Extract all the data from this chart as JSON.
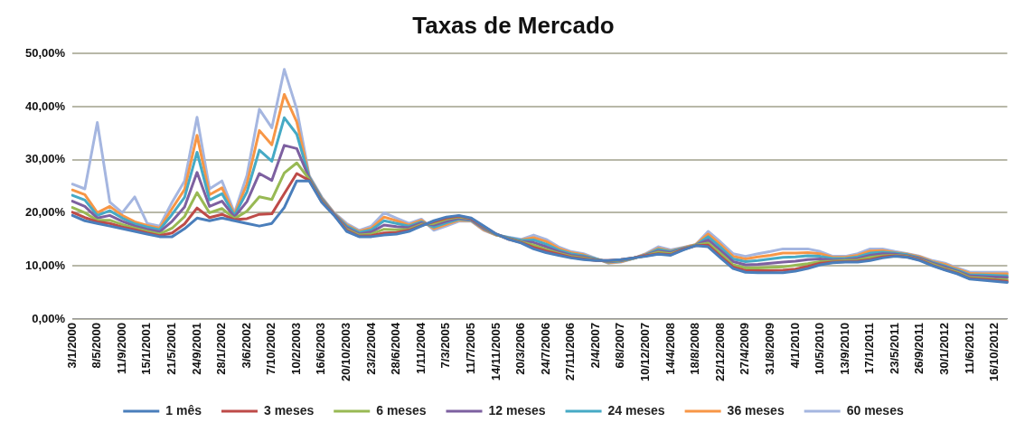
{
  "chart_data": {
    "type": "line",
    "title": "Taxas de Mercado",
    "categories": [
      "3/1/2000",
      null,
      "8/5/2000",
      null,
      "11/9/2000",
      null,
      "15/1/2001",
      null,
      "21/5/2001",
      null,
      "24/9/2001",
      null,
      "28/1/2002",
      null,
      "3/6/2002",
      null,
      "7/10/2002",
      null,
      "10/2/2003",
      null,
      "16/6/2003",
      null,
      "20/10/2003",
      null,
      "23/2/2004",
      null,
      "28/6/2004",
      null,
      "1/11/2004",
      null,
      "7/3/2005",
      null,
      "11/7/2005",
      null,
      "14/11/2005",
      null,
      "20/3/2006",
      null,
      "24/7/2006",
      null,
      "27/11/2006",
      null,
      "2/4/2007",
      null,
      "6/8/2007",
      null,
      "10/12/2007",
      null,
      "14/4/2008",
      null,
      "18/8/2008",
      null,
      "22/12/2008",
      null,
      "27/4/2009",
      null,
      "31/8/2009",
      null,
      "4/1/2010",
      null,
      "10/5/2010",
      null,
      "13/9/2010",
      null,
      "17/1/2011",
      null,
      "23/5/2011",
      null,
      "26/9/2011",
      null,
      "30/1/2012",
      null,
      "11/6/2012",
      null,
      "16/10/2012",
      null
    ],
    "series": [
      {
        "name": "1 mês",
        "color": "#4a7ebb",
        "values": [
          19.5,
          18.5,
          18,
          17.5,
          17,
          16.5,
          16,
          15.5,
          15.5,
          17,
          19,
          18.5,
          19,
          18.5,
          18,
          17.5,
          18,
          21,
          26,
          26,
          22,
          19.5,
          16.5,
          15.5,
          15.5,
          15.8,
          16,
          16.5,
          17.5,
          18.5,
          19.2,
          19.5,
          19,
          17.5,
          16,
          15,
          14.3,
          13.2,
          12.5,
          12,
          11.5,
          11.2,
          11,
          11,
          11.2,
          11.5,
          11.8,
          12.2,
          12,
          13,
          13.8,
          13.6,
          11.5,
          9.5,
          8.8,
          8.7,
          8.7,
          8.7,
          9,
          9.5,
          10.2,
          10.6,
          10.7,
          10.7,
          11,
          11.5,
          11.8,
          11.6,
          11,
          10,
          9.2,
          8.5,
          7.5,
          7.3,
          7.1,
          6.9
        ]
      },
      {
        "name": "3 meses",
        "color": "#be4b48",
        "values": [
          20.1,
          19.1,
          18.3,
          18,
          17.3,
          16.8,
          16.2,
          15.7,
          16.2,
          17.9,
          20.9,
          19.1,
          19.7,
          18.7,
          18.9,
          19.7,
          19.8,
          23.6,
          27.4,
          26.1,
          22.1,
          19.6,
          16.7,
          15.6,
          15.7,
          16.2,
          16.3,
          16.7,
          17.6,
          18.3,
          19,
          19.4,
          18.9,
          17.4,
          16,
          15,
          14.4,
          13.5,
          12.8,
          12.2,
          11.6,
          11.3,
          11,
          11,
          11.2,
          11.5,
          11.9,
          12.3,
          12.1,
          13.1,
          13.8,
          13.9,
          11.8,
          9.8,
          9.1,
          9.1,
          9.1,
          9.2,
          9.4,
          9.9,
          10.5,
          10.7,
          10.8,
          10.9,
          11.2,
          11.7,
          11.9,
          11.7,
          11.1,
          10.1,
          9.3,
          8.6,
          7.6,
          7.5,
          7.3,
          7.1
        ]
      },
      {
        "name": "6 meses",
        "color": "#98b954",
        "values": [
          21,
          20,
          18.6,
          18.6,
          17.8,
          17.1,
          16.5,
          16,
          17.1,
          19.3,
          23.8,
          20,
          20.8,
          18.9,
          20.3,
          23,
          22.5,
          27.5,
          29.4,
          26.3,
          22.3,
          19.6,
          16.9,
          15.8,
          16,
          16.9,
          16.8,
          16.9,
          17.8,
          18,
          18.8,
          19.2,
          18.9,
          17.3,
          15.9,
          15.1,
          14.5,
          13.9,
          13.1,
          12.4,
          11.8,
          11.5,
          11.1,
          10.9,
          11.1,
          11.5,
          11.9,
          12.6,
          12.3,
          13.1,
          13.9,
          14.3,
          12.3,
          10.2,
          9.6,
          9.6,
          9.7,
          9.8,
          10.1,
          10.4,
          10.8,
          10.9,
          11,
          11.1,
          11.6,
          11.9,
          12,
          11.8,
          11.2,
          10.3,
          9.5,
          8.8,
          7.8,
          7.7,
          7.5,
          7.4
        ]
      },
      {
        "name": "12 meses",
        "color": "#7d60a0",
        "values": [
          22.2,
          21.2,
          19,
          19.5,
          18.4,
          17.5,
          16.9,
          16.4,
          18.4,
          21.1,
          27.6,
          21.2,
          22.2,
          19.2,
          22.1,
          27.4,
          26.1,
          32.7,
          32.1,
          26.5,
          22.5,
          19.7,
          17.2,
          16,
          16.4,
          17.7,
          17.4,
          17.2,
          18.1,
          17.7,
          18.4,
          19,
          18.7,
          17.1,
          15.9,
          15.2,
          14.6,
          14.4,
          13.6,
          12.7,
          12,
          11.7,
          11.2,
          10.8,
          11,
          11.5,
          12,
          12.8,
          12.5,
          13.2,
          13.9,
          14.9,
          12.9,
          10.8,
          10.2,
          10.3,
          10.5,
          10.7,
          10.9,
          11.2,
          11.3,
          11.1,
          11.2,
          11.4,
          12,
          12.3,
          12.2,
          11.9,
          11.4,
          10.5,
          9.8,
          9,
          8.1,
          8,
          7.9,
          7.8
        ]
      },
      {
        "name": "24 meses",
        "color": "#46aac5",
        "values": [
          23.3,
          22.4,
          19.5,
          20.4,
          19,
          17.9,
          17.3,
          16.8,
          19.7,
          22.9,
          31.4,
          22.4,
          23.6,
          19.5,
          23.9,
          31.8,
          29.7,
          37.9,
          34.8,
          26.7,
          22.7,
          19.8,
          17.5,
          16.3,
          16.8,
          18.5,
          18,
          17.5,
          18.3,
          17.3,
          18.1,
          18.8,
          18.6,
          17,
          15.9,
          15.3,
          14.8,
          14.9,
          14.1,
          13,
          12.3,
          11.9,
          11.3,
          10.7,
          10.9,
          11.4,
          12.1,
          13.1,
          12.7,
          13.3,
          13.9,
          15.5,
          13.5,
          11.3,
          10.8,
          11,
          11.3,
          11.6,
          11.7,
          11.9,
          11.8,
          11.4,
          11.4,
          11.7,
          12.4,
          12.6,
          12.4,
          12.1,
          11.5,
          10.7,
          10,
          9.2,
          8.3,
          8.3,
          8.2,
          8.1
        ]
      },
      {
        "name": "36 meses",
        "color": "#f79646",
        "values": [
          24.3,
          23.4,
          20,
          21.2,
          19.5,
          18.3,
          17.6,
          17.1,
          20.8,
          24.4,
          34.6,
          23.4,
          24.7,
          19.7,
          25.4,
          35.5,
          32.8,
          42.3,
          37.1,
          26.8,
          22.8,
          19.9,
          17.7,
          16.5,
          17.1,
          19.2,
          18.5,
          17.7,
          18.6,
          17,
          17.8,
          18.6,
          18.5,
          16.8,
          15.8,
          null,
          14.9,
          15.3,
          14.6,
          13.3,
          12.5,
          12.1,
          11.3,
          10.6,
          10.8,
          11.4,
          12.2,
          13.3,
          12.8,
          13.4,
          14,
          16,
          14,
          11.8,
          11.3,
          11.7,
          12,
          12.4,
          12.4,
          12.5,
          12.3,
          11.6,
          11.6,
          12,
          12.8,
          12.9,
          12.5,
          12.2,
          11.7,
          10.8,
          10.3,
          9.4,
          8.6,
          8.5,
          8.5,
          8.5
        ]
      },
      {
        "name": "60 meses",
        "color": "#a5b6e0",
        "values": [
          25.4,
          24.5,
          37,
          22,
          20,
          23,
          18,
          17.5,
          22,
          26,
          38,
          24.5,
          26,
          20,
          27,
          39.5,
          36,
          47,
          39.5,
          27,
          23,
          20,
          18,
          16.7,
          17.5,
          20,
          19,
          18,
          18.8,
          16.7,
          17.5,
          18.4,
          18.4,
          16.7,
          15.8,
          15.4,
          15,
          15.8,
          15,
          13.6,
          12.7,
          12.3,
          11.4,
          10.5,
          10.7,
          11.4,
          12.3,
          13.6,
          13,
          13.5,
          14,
          16.5,
          14.5,
          12.3,
          11.8,
          12.3,
          12.7,
          13.2,
          13.2,
          13.2,
          12.7,
          11.8,
          11.8,
          12.3,
          13.2,
          13.2,
          12.7,
          12.3,
          11.8,
          11,
          10.5,
          9.6,
          8.8,
          8.8,
          8.8,
          8.8
        ]
      }
    ],
    "ylim": [
      0,
      50
    ],
    "yticks": [
      {
        "value": 0,
        "label": "0,00%"
      },
      {
        "value": 10,
        "label": "10,00%"
      },
      {
        "value": 20,
        "label": "20,00%"
      },
      {
        "value": 30,
        "label": "30,00%"
      },
      {
        "value": 40,
        "label": "40,00%"
      },
      {
        "value": 50,
        "label": "50,00%"
      }
    ],
    "grid": "y",
    "legend": "bottom",
    "marker": "none",
    "line_style": "solid"
  }
}
